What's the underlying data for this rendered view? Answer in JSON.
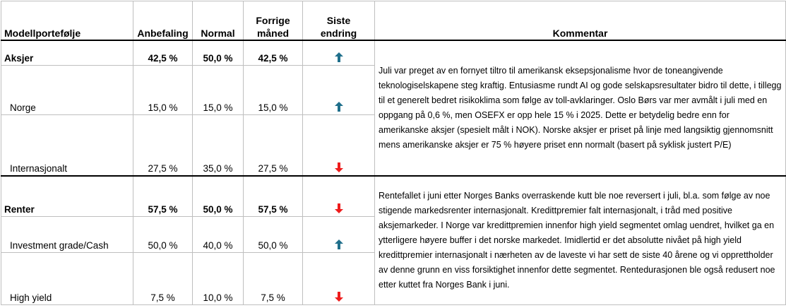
{
  "header": {
    "col_portfolio": "Modellportefølje",
    "col_recommendation": "Anbefaling",
    "col_normal": "Normal",
    "col_prev": "Forrige\nmåned",
    "col_change": "Siste\nendring",
    "col_comment": "Kommentar"
  },
  "colors": {
    "up": "#1f6f8b",
    "down": "#ee1c1c"
  },
  "rows": [
    {
      "label": "Aksjer",
      "rec": "42,5 %",
      "normal": "50,0 %",
      "prev": "42,5 %",
      "change": "up-arrow-icon"
    },
    {
      "label": "Norge",
      "rec": "15,0 %",
      "normal": "15,0 %",
      "prev": "15,0 %",
      "change": "up-arrow-icon"
    },
    {
      "label": "Internasjonalt",
      "rec": "27,5 %",
      "normal": "35,0 %",
      "prev": "27,5 %",
      "change": "down-arrow-icon"
    },
    {
      "label": "Renter",
      "rec": "57,5 %",
      "normal": "50,0 %",
      "prev": "57,5 %",
      "change": "down-arrow-icon"
    },
    {
      "label": "Investment grade/Cash",
      "rec": "50,0 %",
      "normal": "40,0 %",
      "prev": "50,0 %",
      "change": "up-arrow-icon"
    },
    {
      "label": "High yield",
      "rec": "7,5 %",
      "normal": "10,0 %",
      "prev": "7,5 %",
      "change": "down-arrow-icon"
    }
  ],
  "comments": {
    "equities": "Juli var preget av en fornyet tiltro til amerikansk eksepsjonalisme hvor de toneangivende teknologiselskapene steg kraftig. Entusiasme rundt AI og gode selskapsresultater bidro til dette, i tillegg til et generelt bedret risikoklima som følge av toll-avklaringer. Oslo Børs var mer avmålt i juli med en oppgang på 0,6 %, men OSEFX er opp hele 15 % i 2025. Dette er betydelig bedre enn for amerikanske aksjer (spesielt målt i NOK). Norske aksjer er priset på linje med langsiktig gjennomsnitt mens amerikanske aksjer er 75 % høyere priset enn normalt (basert på syklisk justert P/E)",
    "fixed_income": "Rentefallet i juni etter Norges Banks overraskende kutt ble noe reversert i juli, bl.a. som følge av noe stigende markedsrenter internasjonalt. Kredittpremier falt internasjonalt, i tråd med positive aksjemarkeder. I Norge var kredittpremien innenfor high yield segmentet omlag uendret, hvilket ga en ytterligere høyere buffer i det norske markedet. Imidlertid er det absolutte nivået på high yield kredittpremier internasjonalt i nærheten av de laveste vi har sett de siste 40 årene og vi opprettholder av denne grunn en viss forsiktighet innenfor dette segmentet. Rentedurasjonen ble også redusert noe etter kuttet fra Norges Bank i juni."
  }
}
